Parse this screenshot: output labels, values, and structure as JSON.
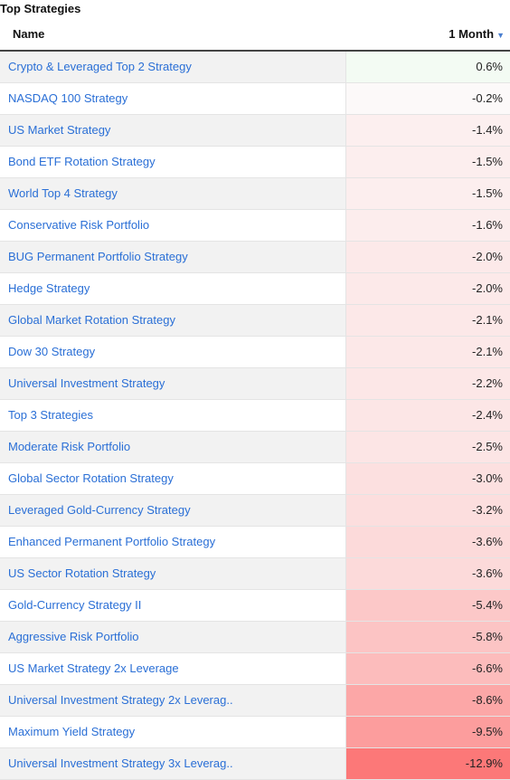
{
  "title": "Top Strategies",
  "columns": {
    "name": "Name",
    "value": "1 Month",
    "sort_icon": "sort-descending-icon"
  },
  "colors": {
    "link": "#2a6fd6",
    "positive_cell": "#f3fbf3",
    "negative_scale_max": "#fb7878"
  },
  "rows": [
    {
      "name": "Crypto & Leveraged Top 2 Strategy",
      "value": "0.6%",
      "num": 0.6
    },
    {
      "name": "NASDAQ 100 Strategy",
      "value": "-0.2%",
      "num": -0.2
    },
    {
      "name": "US Market Strategy",
      "value": "-1.4%",
      "num": -1.4
    },
    {
      "name": "Bond ETF Rotation Strategy",
      "value": "-1.5%",
      "num": -1.5
    },
    {
      "name": "World Top 4 Strategy",
      "value": "-1.5%",
      "num": -1.5
    },
    {
      "name": "Conservative Risk Portfolio",
      "value": "-1.6%",
      "num": -1.6
    },
    {
      "name": "BUG Permanent Portfolio Strategy",
      "value": "-2.0%",
      "num": -2.0
    },
    {
      "name": "Hedge Strategy",
      "value": "-2.0%",
      "num": -2.0
    },
    {
      "name": "Global Market Rotation Strategy",
      "value": "-2.1%",
      "num": -2.1
    },
    {
      "name": "Dow 30 Strategy",
      "value": "-2.1%",
      "num": -2.1
    },
    {
      "name": "Universal Investment Strategy",
      "value": "-2.2%",
      "num": -2.2
    },
    {
      "name": "Top 3 Strategies",
      "value": "-2.4%",
      "num": -2.4
    },
    {
      "name": "Moderate Risk Portfolio",
      "value": "-2.5%",
      "num": -2.5
    },
    {
      "name": "Global Sector Rotation Strategy",
      "value": "-3.0%",
      "num": -3.0
    },
    {
      "name": "Leveraged Gold-Currency Strategy",
      "value": "-3.2%",
      "num": -3.2
    },
    {
      "name": "Enhanced Permanent Portfolio Strategy",
      "value": "-3.6%",
      "num": -3.6
    },
    {
      "name": "US Sector Rotation Strategy",
      "value": "-3.6%",
      "num": -3.6
    },
    {
      "name": "Gold-Currency Strategy II",
      "value": "-5.4%",
      "num": -5.4
    },
    {
      "name": "Aggressive Risk Portfolio",
      "value": "-5.8%",
      "num": -5.8
    },
    {
      "name": "US Market Strategy 2x Leverage",
      "value": "-6.6%",
      "num": -6.6
    },
    {
      "name": "Universal Investment Strategy 2x Leverag..",
      "value": "-8.6%",
      "num": -8.6
    },
    {
      "name": "Maximum Yield Strategy",
      "value": "-9.5%",
      "num": -9.5
    },
    {
      "name": "Universal Investment Strategy 3x Leverag..",
      "value": "-12.9%",
      "num": -12.9
    }
  ]
}
